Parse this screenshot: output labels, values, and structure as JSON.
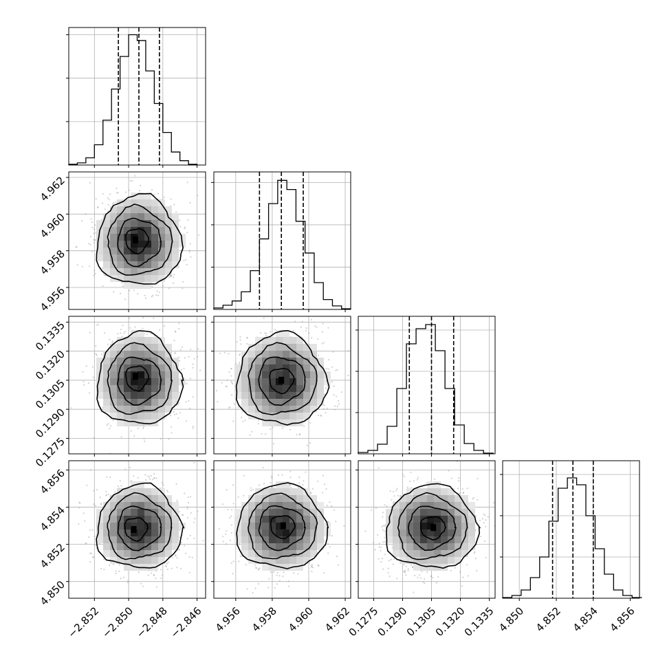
{
  "chart_data": {
    "type": "corner",
    "parameters": 4,
    "panels": [
      {
        "kind": "histogram",
        "row": 0,
        "col": 0,
        "xlim": [
          -2.8535,
          -2.8455
        ],
        "quantiles": [
          -2.8506,
          -2.8494,
          -2.8482
        ],
        "bin_edges": [
          -2.8535,
          -2.853,
          -2.8525,
          -2.852,
          -2.8515,
          -2.851,
          -2.8505,
          -2.85,
          -2.8495,
          -2.849,
          -2.8485,
          -2.848,
          -2.8475,
          -2.847,
          -2.8465,
          -2.846
        ],
        "counts": [
          1,
          3,
          10,
          28,
          62,
          105,
          150,
          180,
          172,
          130,
          85,
          45,
          18,
          6,
          1
        ],
        "ylim": [
          0,
          190
        ],
        "yticks": [
          60,
          120,
          180
        ]
      },
      {
        "kind": "histogram",
        "row": 1,
        "col": 1,
        "xlim": [
          4.9548,
          4.9623
        ],
        "quantiles": [
          4.9573,
          4.9585,
          4.9597
        ],
        "bin_edges": [
          4.9548,
          4.9553,
          4.9558,
          4.9563,
          4.9568,
          4.9573,
          4.9578,
          4.9583,
          4.9588,
          4.9593,
          4.9598,
          4.9603,
          4.9608,
          4.9613,
          4.9618,
          4.9623
        ],
        "counts": [
          2,
          6,
          12,
          25,
          55,
          100,
          150,
          183,
          170,
          125,
          80,
          38,
          14,
          5,
          1
        ],
        "ylim": [
          0,
          195
        ],
        "yticks": [
          60,
          120,
          180
        ]
      },
      {
        "kind": "histogram",
        "row": 2,
        "col": 2,
        "xlim": [
          0.1267,
          0.1338
        ],
        "quantiles": [
          0.12935,
          0.1305,
          0.13165
        ],
        "bin_edges": [
          0.1267,
          0.1272,
          0.1277,
          0.1282,
          0.1287,
          0.1292,
          0.1297,
          0.1302,
          0.1307,
          0.1312,
          0.1317,
          0.1322,
          0.1327,
          0.1332,
          0.1337
        ],
        "counts": [
          2,
          5,
          14,
          40,
          95,
          160,
          182,
          188,
          150,
          95,
          42,
          15,
          5,
          1
        ],
        "ylim": [
          0,
          200
        ],
        "yticks": [
          60,
          120,
          180
        ]
      },
      {
        "kind": "histogram",
        "row": 3,
        "col": 3,
        "xlim": [
          4.8491,
          4.8565
        ],
        "quantiles": [
          4.8518,
          4.8529,
          4.854
        ],
        "bin_edges": [
          4.8491,
          4.8496,
          4.8501,
          4.8506,
          4.8511,
          4.8516,
          4.8521,
          4.8526,
          4.8531,
          4.8536,
          4.8541,
          4.8546,
          4.8551,
          4.8556,
          4.8561,
          4.8566
        ],
        "counts": [
          1,
          4,
          12,
          30,
          60,
          112,
          160,
          175,
          165,
          120,
          72,
          35,
          12,
          4,
          1
        ],
        "ylim": [
          0,
          200
        ],
        "yticks": [
          60,
          120,
          180
        ]
      },
      {
        "kind": "2d",
        "row": 1,
        "col": 0,
        "xlim": [
          -2.8535,
          -2.8455
        ],
        "ylim": [
          4.9548,
          4.9623
        ],
        "center": [
          -2.8494,
          4.9585
        ],
        "sigma": [
          0.0012,
          0.0012
        ],
        "peak": [
          -2.8496,
          4.9586
        ]
      },
      {
        "kind": "2d",
        "row": 2,
        "col": 0,
        "xlim": [
          -2.8535,
          -2.8455
        ],
        "ylim": [
          0.1267,
          0.1338
        ],
        "center": [
          -2.8494,
          0.1305
        ],
        "sigma": [
          0.0012,
          0.00115
        ],
        "peak": [
          -2.8496,
          0.1307
        ]
      },
      {
        "kind": "2d",
        "row": 2,
        "col": 1,
        "xlim": [
          4.9548,
          4.9623
        ],
        "ylim": [
          0.1267,
          0.1338
        ],
        "center": [
          4.9585,
          0.1305
        ],
        "sigma": [
          0.0012,
          0.00115
        ],
        "peak": [
          4.9585,
          0.1305
        ]
      },
      {
        "kind": "2d",
        "row": 3,
        "col": 0,
        "xlim": [
          -2.8535,
          -2.8455
        ],
        "ylim": [
          4.8491,
          4.8565
        ],
        "center": [
          -2.8494,
          4.8529
        ],
        "sigma": [
          0.0012,
          0.0011
        ],
        "peak": [
          -2.8497,
          4.8528
        ]
      },
      {
        "kind": "2d",
        "row": 3,
        "col": 1,
        "xlim": [
          4.9548,
          4.9623
        ],
        "ylim": [
          4.8491,
          4.8565
        ],
        "center": [
          4.9585,
          4.8529
        ],
        "sigma": [
          0.0012,
          0.0011
        ],
        "peak": [
          4.9586,
          4.853
        ]
      },
      {
        "kind": "2d",
        "row": 3,
        "col": 2,
        "xlim": [
          0.1267,
          0.1338
        ],
        "ylim": [
          4.8491,
          4.8565
        ],
        "center": [
          0.1305,
          4.8529
        ],
        "sigma": [
          0.00115,
          0.0011
        ],
        "peak": [
          0.1306,
          4.8529
        ]
      }
    ],
    "x_ticks": [
      {
        "values": [
          -2.852,
          -2.85,
          -2.848,
          -2.846
        ],
        "labels": [
          "−2.852",
          "−2.850",
          "−2.848",
          "−2.846"
        ]
      },
      {
        "values": [
          4.956,
          4.958,
          4.96,
          4.962
        ],
        "labels": [
          "4.956",
          "4.958",
          "4.960",
          "4.962"
        ]
      },
      {
        "values": [
          0.1275,
          0.129,
          0.1305,
          0.132,
          0.1335
        ],
        "labels": [
          "0.1275",
          "0.1290",
          "0.1305",
          "0.1320",
          "0.1335"
        ]
      },
      {
        "values": [
          4.85,
          4.852,
          4.854,
          4.856
        ],
        "labels": [
          "4.850",
          "4.852",
          "4.854",
          "4.856"
        ]
      }
    ],
    "y_ticks": [
      null,
      {
        "values": [
          4.956,
          4.958,
          4.96,
          4.962
        ],
        "labels": [
          "4.956",
          "4.958",
          "4.960",
          "4.962"
        ]
      },
      {
        "values": [
          0.1275,
          0.129,
          0.1305,
          0.132,
          0.1335
        ],
        "labels": [
          "0.1275",
          "0.1290",
          "0.1305",
          "0.1320",
          "0.1335"
        ]
      },
      {
        "values": [
          4.85,
          4.852,
          4.854,
          4.856
        ],
        "labels": [
          "4.850",
          "4.852",
          "4.854",
          "4.856"
        ]
      }
    ],
    "grid": true,
    "colors": {
      "line": "#000000",
      "grid": "#b0b0b0",
      "scatter": "#999999"
    }
  }
}
